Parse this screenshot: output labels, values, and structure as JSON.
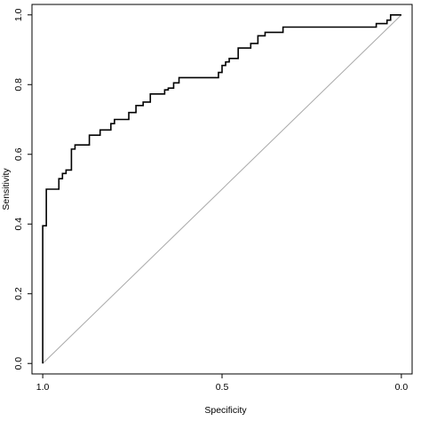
{
  "chart_data": {
    "type": "line",
    "xlabel": "Specificity",
    "ylabel": "Sensitivity",
    "xlim": [
      1.03,
      -0.03
    ],
    "ylim": [
      -0.03,
      1.03
    ],
    "x_reversed": true,
    "x_ticks": [
      {
        "value": 1.0,
        "label": "1.0"
      },
      {
        "value": 0.5,
        "label": "0.5"
      },
      {
        "value": 0.0,
        "label": "0.0"
      }
    ],
    "y_ticks": [
      {
        "value": 0.0,
        "label": "0.0"
      },
      {
        "value": 0.2,
        "label": "0.2"
      },
      {
        "value": 0.4,
        "label": "0.4"
      },
      {
        "value": 0.6,
        "label": "0.6"
      },
      {
        "value": 0.8,
        "label": "0.8"
      },
      {
        "value": 1.0,
        "label": "1.0"
      }
    ],
    "reference_line": {
      "from": [
        1.0,
        0.0
      ],
      "to": [
        0.0,
        1.0
      ],
      "color": "#a8a8a8"
    },
    "series": [
      {
        "color": "#000000",
        "x": [
          1.0,
          1.0,
          0.99,
          0.99,
          0.955,
          0.955,
          0.945,
          0.945,
          0.935,
          0.935,
          0.92,
          0.92,
          0.91,
          0.91,
          0.87,
          0.87,
          0.84,
          0.84,
          0.81,
          0.81,
          0.8,
          0.8,
          0.76,
          0.76,
          0.74,
          0.74,
          0.72,
          0.72,
          0.7,
          0.7,
          0.66,
          0.66,
          0.65,
          0.65,
          0.635,
          0.635,
          0.62,
          0.62,
          0.51,
          0.51,
          0.5,
          0.5,
          0.49,
          0.49,
          0.48,
          0.48,
          0.455,
          0.455,
          0.42,
          0.42,
          0.4,
          0.4,
          0.38,
          0.38,
          0.33,
          0.33,
          0.07,
          0.07,
          0.04,
          0.04,
          0.03,
          0.03,
          0.02,
          0.02,
          0.01,
          0.01,
          0.0
        ],
        "y": [
          0.0,
          0.395,
          0.395,
          0.5,
          0.5,
          0.53,
          0.53,
          0.545,
          0.545,
          0.555,
          0.555,
          0.615,
          0.615,
          0.627,
          0.627,
          0.655,
          0.655,
          0.67,
          0.67,
          0.688,
          0.688,
          0.7,
          0.7,
          0.72,
          0.72,
          0.74,
          0.74,
          0.75,
          0.75,
          0.773,
          0.773,
          0.785,
          0.785,
          0.79,
          0.79,
          0.805,
          0.805,
          0.82,
          0.82,
          0.835,
          0.835,
          0.855,
          0.855,
          0.865,
          0.865,
          0.875,
          0.875,
          0.905,
          0.905,
          0.918,
          0.918,
          0.94,
          0.94,
          0.95,
          0.95,
          0.965,
          0.965,
          0.975,
          0.975,
          0.985,
          0.985,
          1.0,
          1.0,
          1.0,
          1.0,
          1.0,
          1.0
        ]
      }
    ]
  }
}
